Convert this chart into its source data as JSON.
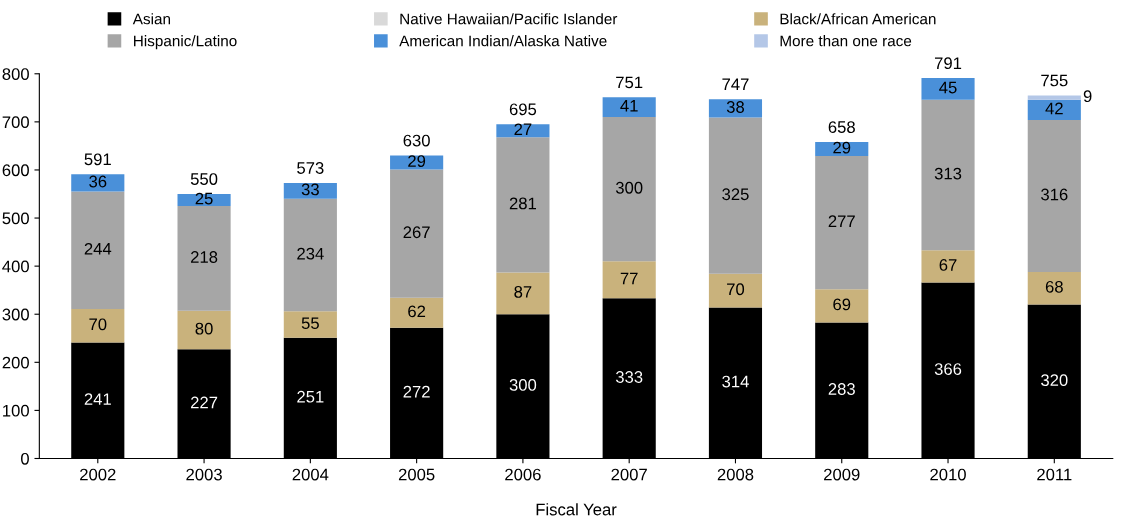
{
  "chart_data": {
    "type": "bar",
    "stacked": true,
    "xlabel": "Fiscal Year",
    "categories": [
      "2002",
      "2003",
      "2004",
      "2005",
      "2006",
      "2007",
      "2008",
      "2009",
      "2010",
      "2011"
    ],
    "series": [
      {
        "name": "Asian",
        "color": "#000000",
        "values": [
          241,
          227,
          251,
          272,
          300,
          333,
          314,
          283,
          366,
          320
        ]
      },
      {
        "name": "Native Hawaiian/Pacific Islander",
        "color": "#d9d9d9",
        "values": [
          null,
          null,
          null,
          null,
          null,
          null,
          null,
          null,
          null,
          null
        ]
      },
      {
        "name": "Black/African American",
        "color": "#c9b27c",
        "values": [
          70,
          80,
          55,
          62,
          87,
          77,
          70,
          69,
          67,
          68
        ]
      },
      {
        "name": "Hispanic/Latino",
        "color": "#a6a6a6",
        "values": [
          244,
          218,
          234,
          267,
          281,
          300,
          325,
          277,
          313,
          316
        ]
      },
      {
        "name": "American Indian/Alaska Native",
        "color": "#4a90d9",
        "values": [
          36,
          25,
          33,
          29,
          27,
          41,
          38,
          29,
          45,
          42
        ]
      },
      {
        "name": "More than one race",
        "color": "#b4c7e7",
        "values": [
          null,
          null,
          null,
          null,
          null,
          null,
          null,
          null,
          null,
          9
        ]
      }
    ],
    "data_labels": true,
    "totals": [
      "591",
      "550",
      "573",
      "630",
      "695",
      "751",
      "747",
      "658",
      "791",
      "755"
    ],
    "ylim": [
      0,
      800
    ],
    "yticks": [
      0,
      100,
      200,
      300,
      400,
      500,
      600,
      700,
      800
    ],
    "grid": false,
    "legend": "top"
  }
}
